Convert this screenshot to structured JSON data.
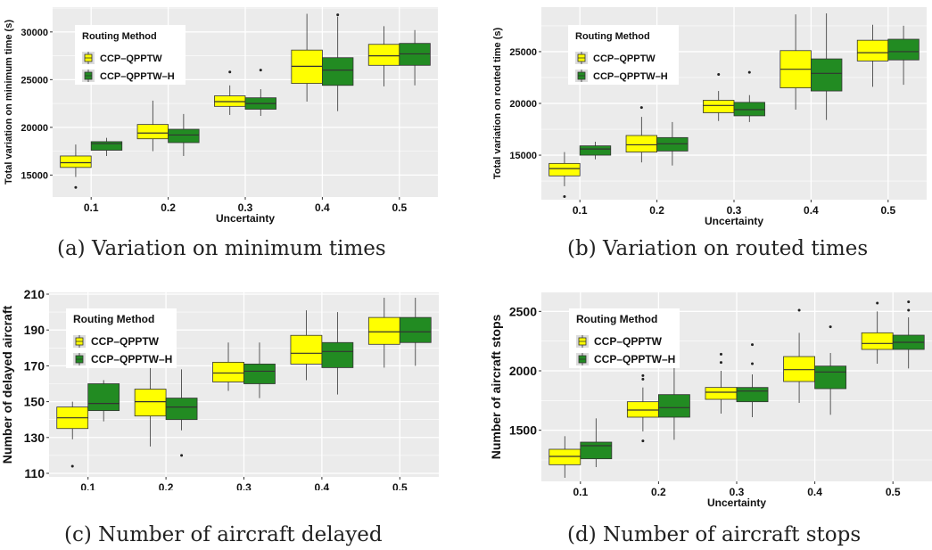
{
  "legend": {
    "title": "Routing Method",
    "items": [
      {
        "name": "CCP–QPPTW",
        "color": "#ffff00"
      },
      {
        "name": "CCP–QPPTW–H",
        "color": "#228b22"
      }
    ]
  },
  "colors": {
    "panel_bg": "#ebebeb",
    "grid": "#ffffff",
    "box_edge": "#333333"
  },
  "chart_data": [
    {
      "type": "boxplot",
      "caption": "(a) Variation on minimum times",
      "xlabel": "Uncertainty",
      "ylabel": "Total variation on minimum time (s)",
      "categories": [
        "0.1",
        "0.2",
        "0.3",
        "0.4",
        "0.5"
      ],
      "yticks": [
        15000,
        20000,
        25000,
        30000
      ],
      "ylim": [
        12700,
        32600
      ],
      "legend_position": "top-left",
      "series": [
        {
          "name": "CCP–QPPTW",
          "boxes": [
            {
              "min": 14800,
              "q1": 15800,
              "median": 16300,
              "q3": 17000,
              "max": 18200,
              "outliers": [
                13700
              ]
            },
            {
              "min": 17500,
              "q1": 18800,
              "median": 19400,
              "q3": 20300,
              "max": 22800,
              "outliers": []
            },
            {
              "min": 21300,
              "q1": 22200,
              "median": 22700,
              "q3": 23300,
              "max": 24400,
              "outliers": [
                25800
              ]
            },
            {
              "min": 22700,
              "q1": 24600,
              "median": 26400,
              "q3": 28100,
              "max": 31900,
              "outliers": []
            },
            {
              "min": 24300,
              "q1": 26500,
              "median": 27500,
              "q3": 28700,
              "max": 30600,
              "outliers": []
            }
          ]
        },
        {
          "name": "CCP–QPPTW–H",
          "boxes": [
            {
              "min": 17000,
              "q1": 17600,
              "median": 18300,
              "q3": 18500,
              "max": 18900,
              "outliers": []
            },
            {
              "min": 17000,
              "q1": 18400,
              "median": 19200,
              "q3": 19800,
              "max": 21400,
              "outliers": []
            },
            {
              "min": 21200,
              "q1": 21900,
              "median": 22500,
              "q3": 23100,
              "max": 24000,
              "outliers": [
                26000
              ]
            },
            {
              "min": 21700,
              "q1": 24400,
              "median": 26000,
              "q3": 27300,
              "max": 31600,
              "outliers": [
                31800
              ]
            },
            {
              "min": 24400,
              "q1": 26500,
              "median": 27700,
              "q3": 28800,
              "max": 30200,
              "outliers": []
            }
          ]
        }
      ]
    },
    {
      "type": "boxplot",
      "caption": "(b) Variation on routed times",
      "xlabel": "Uncertainty",
      "ylabel": "Total variation on routed time (s)",
      "categories": [
        "0.1",
        "0.2",
        "0.3",
        "0.4",
        "0.5"
      ],
      "yticks": [
        15000,
        20000,
        25000
      ],
      "ylim": [
        10700,
        29300
      ],
      "legend_position": "top-left",
      "series": [
        {
          "name": "CCP–QPPTW",
          "boxes": [
            {
              "min": 12000,
              "q1": 13000,
              "median": 13700,
              "q3": 14200,
              "max": 15300,
              "outliers": [
                11000
              ]
            },
            {
              "min": 14300,
              "q1": 15300,
              "median": 16000,
              "q3": 16900,
              "max": 18700,
              "outliers": [
                19600
              ]
            },
            {
              "min": 18300,
              "q1": 19100,
              "median": 19800,
              "q3": 20300,
              "max": 21200,
              "outliers": [
                22800
              ]
            },
            {
              "min": 19400,
              "q1": 21500,
              "median": 23300,
              "q3": 25100,
              "max": 28600,
              "outliers": []
            },
            {
              "min": 21600,
              "q1": 24100,
              "median": 24900,
              "q3": 26100,
              "max": 27600,
              "outliers": []
            }
          ]
        },
        {
          "name": "CCP–QPPTW–H",
          "boxes": [
            {
              "min": 14600,
              "q1": 15000,
              "median": 15600,
              "q3": 15900,
              "max": 16300,
              "outliers": []
            },
            {
              "min": 14000,
              "q1": 15400,
              "median": 16100,
              "q3": 16700,
              "max": 18200,
              "outliers": []
            },
            {
              "min": 18200,
              "q1": 18800,
              "median": 19400,
              "q3": 20100,
              "max": 20800,
              "outliers": [
                23000
              ]
            },
            {
              "min": 18400,
              "q1": 21200,
              "median": 22900,
              "q3": 24300,
              "max": 28700,
              "outliers": []
            },
            {
              "min": 21800,
              "q1": 24200,
              "median": 25000,
              "q3": 26200,
              "max": 27500,
              "outliers": []
            }
          ]
        }
      ]
    },
    {
      "type": "boxplot",
      "caption": "(c) Number of aircraft delayed",
      "xlabel": "Uncertainty",
      "ylabel": "Number of delayed aircraft",
      "categories": [
        "0.1",
        "0.2",
        "0.3",
        "0.4",
        "0.5"
      ],
      "yticks": [
        110,
        130,
        150,
        170,
        190,
        210
      ],
      "ylim": [
        108,
        211
      ],
      "legend_position": "top-left",
      "series": [
        {
          "name": "CCP–QPPTW",
          "boxes": [
            {
              "min": 129,
              "q1": 135,
              "median": 141,
              "q3": 147,
              "max": 150,
              "outliers": [
                114
              ]
            },
            {
              "min": 125,
              "q1": 142,
              "median": 150,
              "q3": 157,
              "max": 170,
              "outliers": []
            },
            {
              "min": 156,
              "q1": 161,
              "median": 166,
              "q3": 172,
              "max": 183,
              "outliers": []
            },
            {
              "min": 162,
              "q1": 171,
              "median": 177,
              "q3": 187,
              "max": 201,
              "outliers": []
            },
            {
              "min": 169,
              "q1": 182,
              "median": 189,
              "q3": 197,
              "max": 208,
              "outliers": []
            }
          ]
        },
        {
          "name": "CCP–QPPTW–H",
          "boxes": [
            {
              "min": 139,
              "q1": 145,
              "median": 149,
              "q3": 160,
              "max": 162,
              "outliers": []
            },
            {
              "min": 134,
              "q1": 140,
              "median": 147,
              "q3": 152,
              "max": 168,
              "outliers": [
                120
              ]
            },
            {
              "min": 152,
              "q1": 160,
              "median": 167,
              "q3": 171,
              "max": 183,
              "outliers": []
            },
            {
              "min": 154,
              "q1": 169,
              "median": 178,
              "q3": 183,
              "max": 200,
              "outliers": []
            },
            {
              "min": 170,
              "q1": 183,
              "median": 189,
              "q3": 197,
              "max": 208,
              "outliers": []
            }
          ]
        }
      ]
    },
    {
      "type": "boxplot",
      "caption": "(d) Number of aircraft stops",
      "xlabel": "Uncertainty",
      "ylabel": "Number of aircraft stops",
      "categories": [
        "0.1",
        "0.2",
        "0.3",
        "0.4",
        "0.5"
      ],
      "yticks": [
        1500,
        2000,
        2500
      ],
      "ylim": [
        1070,
        2660
      ],
      "legend_position": "top-left",
      "series": [
        {
          "name": "CCP–QPPTW",
          "boxes": [
            {
              "min": 1100,
              "q1": 1210,
              "median": 1280,
              "q3": 1340,
              "max": 1450,
              "outliers": []
            },
            {
              "min": 1490,
              "q1": 1610,
              "median": 1670,
              "q3": 1740,
              "max": 1860,
              "outliers": [
                1410,
                1930,
                1960
              ]
            },
            {
              "min": 1640,
              "q1": 1760,
              "median": 1820,
              "q3": 1860,
              "max": 2000,
              "outliers": [
                2070,
                2140
              ]
            },
            {
              "min": 1730,
              "q1": 1910,
              "median": 2010,
              "q3": 2120,
              "max": 2320,
              "outliers": [
                2510
              ]
            },
            {
              "min": 2060,
              "q1": 2180,
              "median": 2230,
              "q3": 2320,
              "max": 2500,
              "outliers": [
                2570
              ]
            }
          ]
        },
        {
          "name": "CCP–QPPTW–H",
          "boxes": [
            {
              "min": 1190,
              "q1": 1260,
              "median": 1370,
              "q3": 1400,
              "max": 1600,
              "outliers": []
            },
            {
              "min": 1420,
              "q1": 1610,
              "median": 1690,
              "q3": 1800,
              "max": 2060,
              "outliers": []
            },
            {
              "min": 1610,
              "q1": 1740,
              "median": 1830,
              "q3": 1860,
              "max": 1970,
              "outliers": [
                2060,
                2220
              ]
            },
            {
              "min": 1630,
              "q1": 1850,
              "median": 1990,
              "q3": 2040,
              "max": 2150,
              "outliers": [
                2370
              ]
            },
            {
              "min": 2020,
              "q1": 2180,
              "median": 2240,
              "q3": 2300,
              "max": 2450,
              "outliers": [
                2510,
                2580
              ]
            }
          ]
        }
      ]
    }
  ]
}
